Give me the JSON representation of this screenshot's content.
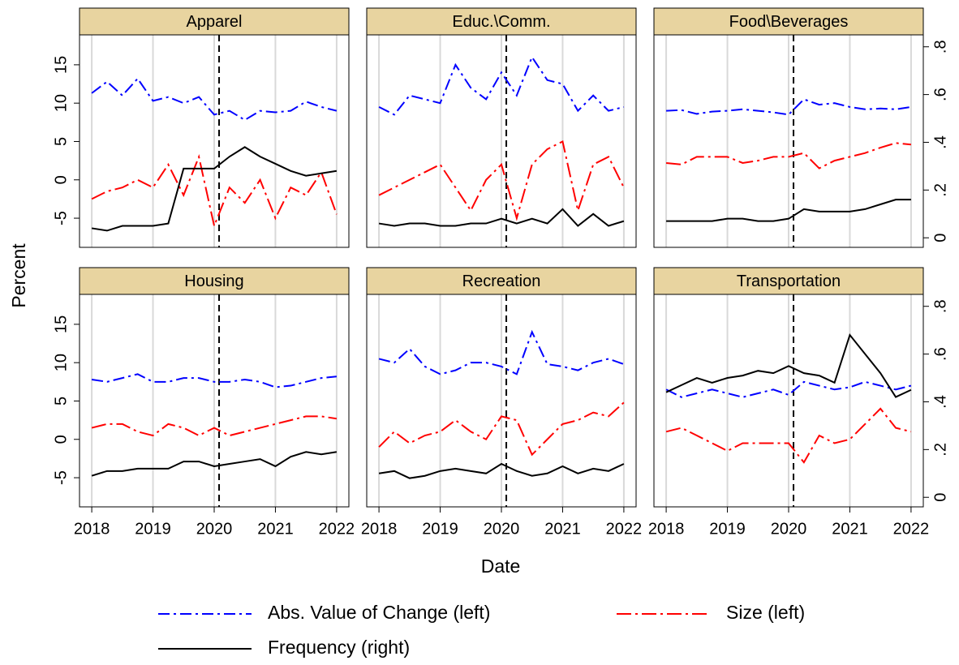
{
  "chart_data": [
    {
      "type": "line",
      "title": "Apparel",
      "x": [
        2018,
        2018.25,
        2018.5,
        2018.75,
        2019,
        2019.25,
        2019.5,
        2019.75,
        2020,
        2020.25,
        2020.5,
        2020.75,
        2021,
        2021.25,
        2021.5,
        2021.75,
        2022
      ],
      "xlim": [
        2017.8,
        2022.2
      ],
      "xticks": [
        2018,
        2019,
        2020,
        2021,
        2022
      ],
      "ylim": [
        -8.8,
        18.9
      ],
      "yticks": [
        -5,
        0,
        5,
        10,
        15
      ],
      "y2lim": [
        -0.04,
        0.85
      ],
      "grid": true,
      "vline": 2020.08,
      "series": [
        {
          "name": "Abs. Value of Change (left)",
          "color": "#0000ff",
          "style": "dashdot",
          "values": [
            11.3,
            12.8,
            11,
            13.2,
            10.3,
            10.8,
            10,
            10.8,
            8.5,
            9,
            7.8,
            9,
            8.8,
            9,
            10.2,
            9.5,
            9
          ]
        },
        {
          "name": "Size (left)",
          "color": "#ff0000",
          "style": "longdashdot",
          "values": [
            -2.5,
            -1.5,
            -1,
            0,
            -1,
            2,
            -2,
            3,
            -6,
            -1,
            -3,
            0,
            -5,
            -1,
            -2,
            1,
            -4.5
          ]
        },
        {
          "name": "Frequency (right)",
          "color": "#000000",
          "style": "solid",
          "axis": "y2",
          "values": [
            0.04,
            0.03,
            0.05,
            0.05,
            0.05,
            0.06,
            0.29,
            0.29,
            0.29,
            0.34,
            0.38,
            0.34,
            0.31,
            0.28,
            0.26,
            0.27,
            0.28
          ]
        }
      ]
    },
    {
      "type": "line",
      "title": "Educ.\\Comm.",
      "x": [
        2018,
        2018.25,
        2018.5,
        2018.75,
        2019,
        2019.25,
        2019.5,
        2019.75,
        2020,
        2020.25,
        2020.5,
        2020.75,
        2021,
        2021.25,
        2021.5,
        2021.75,
        2022
      ],
      "xlim": [
        2017.8,
        2022.2
      ],
      "xticks": [
        2018,
        2019,
        2020,
        2021,
        2022
      ],
      "ylim": [
        -8.8,
        18.9
      ],
      "y2lim": [
        -0.04,
        0.85
      ],
      "grid": true,
      "vline": 2020.08,
      "series": [
        {
          "name": "Abs. Value of Change (left)",
          "color": "#0000ff",
          "style": "dashdot",
          "values": [
            9.5,
            8.5,
            11,
            10.5,
            10,
            15,
            12,
            10.5,
            14,
            11,
            16,
            13,
            12.5,
            9,
            11,
            9,
            9.5
          ]
        },
        {
          "name": "Size (left)",
          "color": "#ff0000",
          "style": "longdashdot",
          "values": [
            -2,
            -1,
            0,
            1,
            2,
            -1,
            -4,
            0,
            2,
            -5,
            2,
            4,
            5,
            -4,
            2,
            3,
            -1
          ]
        },
        {
          "name": "Frequency (right)",
          "color": "#000000",
          "style": "solid",
          "axis": "y2",
          "values": [
            0.06,
            0.05,
            0.06,
            0.06,
            0.05,
            0.05,
            0.06,
            0.06,
            0.08,
            0.06,
            0.08,
            0.06,
            0.12,
            0.05,
            0.1,
            0.05,
            0.07
          ]
        }
      ]
    },
    {
      "type": "line",
      "title": "Food\\Beverages",
      "x": [
        2018,
        2018.25,
        2018.5,
        2018.75,
        2019,
        2019.25,
        2019.5,
        2019.75,
        2020,
        2020.25,
        2020.5,
        2020.75,
        2021,
        2021.25,
        2021.5,
        2021.75,
        2022
      ],
      "xlim": [
        2017.8,
        2022.2
      ],
      "xticks": [
        2018,
        2019,
        2020,
        2021,
        2022
      ],
      "ylim": [
        -8.8,
        18.9
      ],
      "y2lim": [
        -0.04,
        0.85
      ],
      "y2ticks": [
        0,
        {
          "value": 0.2,
          "label": ".2"
        },
        {
          "value": 0.4,
          "label": ".4"
        },
        {
          "value": 0.6,
          "label": ".6"
        },
        {
          "value": 0.8,
          "label": ".8"
        }
      ],
      "grid": true,
      "vline": 2020.08,
      "series": [
        {
          "name": "Abs. Value of Change (left)",
          "color": "#0000ff",
          "style": "dashdot",
          "values": [
            9,
            9.1,
            8.6,
            8.9,
            9,
            9.2,
            9,
            8.8,
            8.5,
            10.5,
            9.8,
            10,
            9.5,
            9.2,
            9.3,
            9.2,
            9.5
          ]
        },
        {
          "name": "Size (left)",
          "color": "#ff0000",
          "style": "longdashdot",
          "values": [
            2.2,
            2,
            3,
            3,
            3,
            2.2,
            2.5,
            3,
            3,
            3.5,
            1.5,
            2.5,
            3,
            3.5,
            4.2,
            4.8,
            4.6
          ]
        },
        {
          "name": "Frequency (right)",
          "color": "#000000",
          "style": "solid",
          "axis": "y2",
          "values": [
            0.07,
            0.07,
            0.07,
            0.07,
            0.08,
            0.08,
            0.07,
            0.07,
            0.08,
            0.12,
            0.11,
            0.11,
            0.11,
            0.12,
            0.14,
            0.16,
            0.16
          ]
        }
      ]
    },
    {
      "type": "line",
      "title": "Housing",
      "x": [
        2018,
        2018.25,
        2018.5,
        2018.75,
        2019,
        2019.25,
        2019.5,
        2019.75,
        2020,
        2020.25,
        2020.5,
        2020.75,
        2021,
        2021.25,
        2021.5,
        2021.75,
        2022
      ],
      "xlim": [
        2017.8,
        2022.2
      ],
      "xticks": [
        2018,
        2019,
        2020,
        2021,
        2022
      ],
      "ylim": [
        -8.8,
        18.9
      ],
      "yticks": [
        -5,
        0,
        5,
        10,
        15
      ],
      "y2lim": [
        -0.04,
        0.85
      ],
      "grid": true,
      "vline": 2020.08,
      "series": [
        {
          "name": "Abs. Value of Change (left)",
          "color": "#0000ff",
          "style": "dashdot",
          "values": [
            7.8,
            7.5,
            8,
            8.5,
            7.5,
            7.5,
            8,
            8,
            7.5,
            7.5,
            7.8,
            7.5,
            6.8,
            7,
            7.5,
            8,
            8.2
          ]
        },
        {
          "name": "Size (left)",
          "color": "#ff0000",
          "style": "longdashdot",
          "values": [
            1.5,
            2,
            2,
            1,
            0.5,
            2,
            1.5,
            0.5,
            1.5,
            0.5,
            1,
            1.5,
            2,
            2.5,
            3,
            3,
            2.7
          ]
        },
        {
          "name": "Frequency (right)",
          "color": "#000000",
          "style": "solid",
          "axis": "y2",
          "values": [
            0.09,
            0.11,
            0.11,
            0.12,
            0.12,
            0.12,
            0.15,
            0.15,
            0.13,
            0.14,
            0.15,
            0.16,
            0.13,
            0.17,
            0.19,
            0.18,
            0.19
          ]
        }
      ]
    },
    {
      "type": "line",
      "title": "Recreation",
      "x": [
        2018,
        2018.25,
        2018.5,
        2018.75,
        2019,
        2019.25,
        2019.5,
        2019.75,
        2020,
        2020.25,
        2020.5,
        2020.75,
        2021,
        2021.25,
        2021.5,
        2021.75,
        2022
      ],
      "xlim": [
        2017.8,
        2022.2
      ],
      "xticks": [
        2018,
        2019,
        2020,
        2021,
        2022
      ],
      "ylim": [
        -8.8,
        18.9
      ],
      "y2lim": [
        -0.04,
        0.85
      ],
      "grid": true,
      "vline": 2020.08,
      "series": [
        {
          "name": "Abs. Value of Change (left)",
          "color": "#0000ff",
          "style": "dashdot",
          "values": [
            10.5,
            10,
            11.8,
            9.5,
            8.5,
            9,
            10,
            10,
            9.5,
            8.5,
            14,
            9.8,
            9.5,
            9,
            10,
            10.5,
            9.8
          ]
        },
        {
          "name": "Size (left)",
          "color": "#ff0000",
          "style": "longdashdot",
          "values": [
            -1,
            1,
            -0.5,
            0.5,
            1,
            2.5,
            1,
            0,
            3,
            2.5,
            -2,
            0,
            2,
            2.5,
            3.5,
            3,
            4.8
          ]
        },
        {
          "name": "Frequency (right)",
          "color": "#000000",
          "style": "solid",
          "axis": "y2",
          "values": [
            0.1,
            0.11,
            0.08,
            0.09,
            0.11,
            0.12,
            0.11,
            0.1,
            0.14,
            0.11,
            0.09,
            0.1,
            0.13,
            0.1,
            0.12,
            0.11,
            0.14
          ]
        }
      ]
    },
    {
      "type": "line",
      "title": "Transportation",
      "x": [
        2018,
        2018.25,
        2018.5,
        2018.75,
        2019,
        2019.25,
        2019.5,
        2019.75,
        2020,
        2020.25,
        2020.5,
        2020.75,
        2021,
        2021.25,
        2021.5,
        2021.75,
        2022
      ],
      "xlim": [
        2017.8,
        2022.2
      ],
      "xticks": [
        2018,
        2019,
        2020,
        2021,
        2022
      ],
      "ylim": [
        -8.8,
        18.9
      ],
      "y2lim": [
        -0.04,
        0.85
      ],
      "y2ticks": [
        0,
        {
          "value": 0.2,
          "label": ".2"
        },
        {
          "value": 0.4,
          "label": ".4"
        },
        {
          "value": 0.6,
          "label": ".6"
        },
        {
          "value": 0.8,
          "label": ".8"
        }
      ],
      "grid": true,
      "vline": 2020.08,
      "series": [
        {
          "name": "Abs. Value of Change (left)",
          "color": "#0000ff",
          "style": "dashdot",
          "values": [
            6.5,
            5.5,
            6,
            6.5,
            6,
            5.5,
            6,
            6.5,
            5.8,
            7.5,
            7,
            6.5,
            6.8,
            7.5,
            7,
            6.5,
            7
          ]
        },
        {
          "name": "Size (left)",
          "color": "#ff0000",
          "style": "longdashdot",
          "values": [
            1,
            1.5,
            0.5,
            -0.5,
            -1.5,
            -0.5,
            -0.5,
            -0.5,
            -0.5,
            -3,
            0.5,
            -0.5,
            0,
            2,
            4,
            1.5,
            1
          ]
        },
        {
          "name": "Frequency (right)",
          "color": "#000000",
          "style": "solid",
          "axis": "y2",
          "values": [
            0.44,
            0.47,
            0.5,
            0.48,
            0.5,
            0.51,
            0.53,
            0.52,
            0.55,
            0.52,
            0.51,
            0.48,
            0.68,
            0.6,
            0.52,
            0.42,
            0.45
          ]
        }
      ]
    }
  ],
  "y_label": "Percent",
  "x_label": "Date"
}
